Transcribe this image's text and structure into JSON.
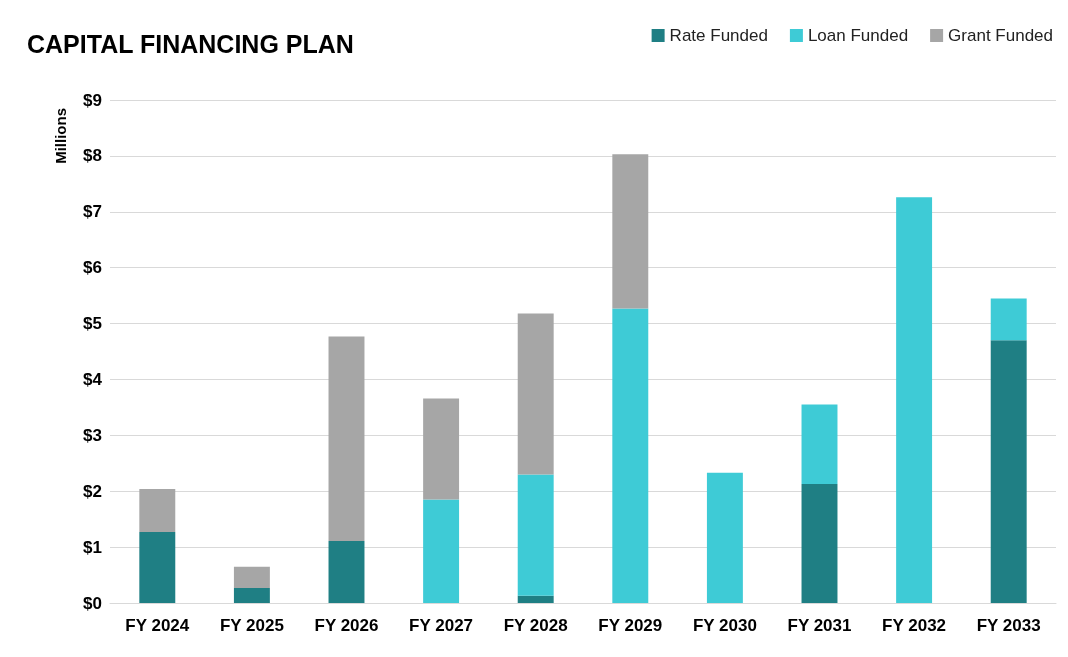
{
  "chart_data": {
    "type": "bar",
    "title": "CAPITAL FINANCING PLAN",
    "ylabel": "Millions",
    "stacked": true,
    "grid": "y",
    "legend": "top right",
    "categories": [
      "FY 2024",
      "FY 2025",
      "FY 2026",
      "FY 2027",
      "FY 2028",
      "FY 2029",
      "FY 2030",
      "FY 2031",
      "FY 2032",
      "FY 2033"
    ],
    "series": [
      {
        "name": "Rate Funded",
        "color": "#1f7f84",
        "values": [
          1.27,
          0.27,
          1.11,
          null,
          0.13,
          null,
          null,
          2.13,
          null,
          4.7
        ]
      },
      {
        "name": "Loan Funded",
        "color": "#3ecbd6",
        "values": [
          null,
          null,
          null,
          1.85,
          2.17,
          5.27,
          2.33,
          1.42,
          7.26,
          0.75
        ]
      },
      {
        "name": "Grant Funded",
        "color": "#a6a6a6",
        "values": [
          0.77,
          0.38,
          3.66,
          1.81,
          2.88,
          2.76,
          null,
          null,
          null,
          null
        ]
      }
    ],
    "ylim": [
      0,
      9
    ],
    "yticks": [
      {
        "value": 0,
        "label": "$0"
      },
      {
        "value": 1,
        "label": "$1"
      },
      {
        "value": 2,
        "label": "$2"
      },
      {
        "value": 3,
        "label": "$3"
      },
      {
        "value": 4,
        "label": "$4"
      },
      {
        "value": 5,
        "label": "$5"
      },
      {
        "value": 6,
        "label": "$6"
      },
      {
        "value": 7,
        "label": "$7"
      },
      {
        "value": 8,
        "label": "$8"
      },
      {
        "value": 9,
        "label": "$9"
      }
    ]
  }
}
